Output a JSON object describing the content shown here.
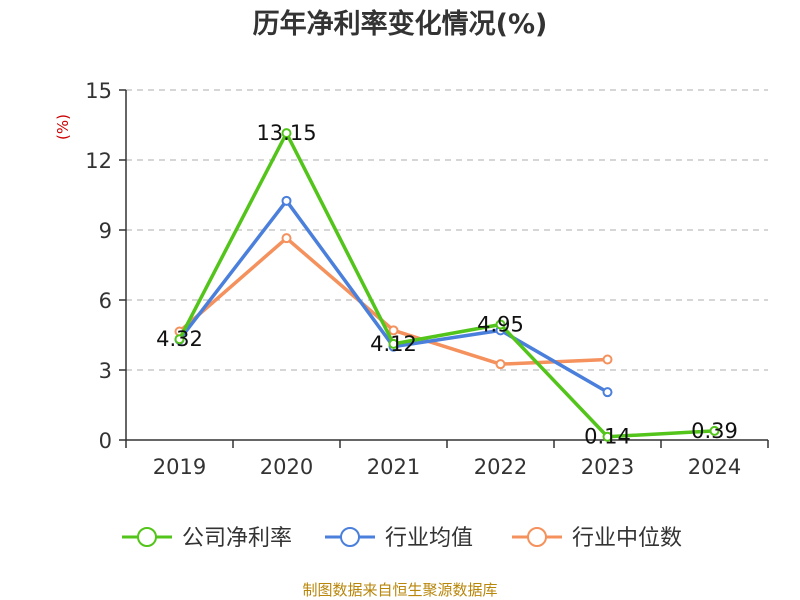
{
  "chart_data": {
    "type": "line",
    "title": "历年净利率变化情况(%)",
    "ylabel": "(%)",
    "categories": [
      "2019",
      "2020",
      "2021",
      "2022",
      "2023",
      "2024"
    ],
    "ylim": [
      0,
      15
    ],
    "yticks": [
      0,
      3,
      6,
      9,
      12,
      15
    ],
    "grid": true,
    "legend_position": "bottom",
    "series": [
      {
        "name": "公司净利率",
        "color": "#52c41a",
        "values": [
          4.32,
          13.15,
          4.12,
          4.95,
          0.14,
          0.39
        ],
        "labels": [
          "4.32",
          "13.15",
          "4.12",
          "4.95",
          "0.14",
          "0.39"
        ]
      },
      {
        "name": "行业均值",
        "color": "#4a7fdc",
        "values": [
          4.3,
          10.25,
          4.0,
          4.7,
          2.05,
          null
        ]
      },
      {
        "name": "行业中位数",
        "color": "#f4915c",
        "values": [
          4.65,
          8.65,
          4.7,
          3.25,
          3.45,
          null
        ]
      }
    ]
  },
  "source": "制图数据来自恒生聚源数据库"
}
